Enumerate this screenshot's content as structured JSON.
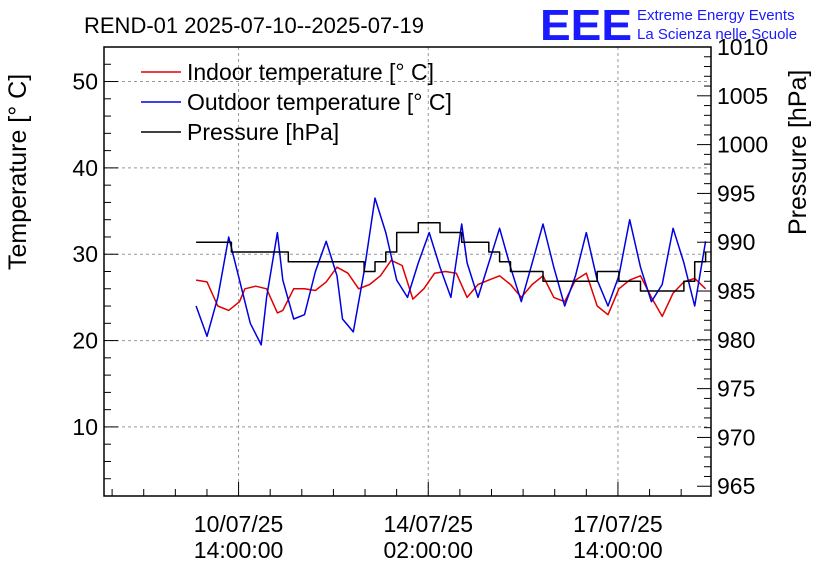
{
  "header": {
    "title": "REND-01 2025-07-10--2025-07-19",
    "logo": {
      "mark": "EEE",
      "line1": "Extreme Energy Events",
      "line2": "La Scienza nelle Scuole",
      "color": "#1a1aff"
    }
  },
  "chart_data": {
    "type": "line",
    "title": "REND-01 2025-07-10--2025-07-19",
    "xlabel": "",
    "ylabel": "Temperature [° C]",
    "y2label": "Pressure [hPa]",
    "xlim": [
      -1.9,
      9.3
    ],
    "ylim": [
      2,
      54
    ],
    "y2lim": [
      964,
      1010
    ],
    "x_unit": "days since 2025-07-10 00:00",
    "x_ticks": [
      {
        "x": 0.583,
        "label1": "10/07/25",
        "label2": "14:00:00"
      },
      {
        "x": 4.083,
        "label1": "14/07/25",
        "label2": "02:00:00"
      },
      {
        "x": 7.583,
        "label1": "17/07/25",
        "label2": "14:00:00"
      }
    ],
    "y_ticks": [
      10,
      20,
      30,
      40,
      50
    ],
    "y2_ticks": [
      965,
      970,
      975,
      980,
      985,
      990,
      995,
      1000,
      1005,
      1010
    ],
    "grid": true,
    "legend_position": "top-left",
    "colors": {
      "indoor": "#e00000",
      "outdoor": "#0000e0",
      "pressure": "#000000"
    },
    "series": [
      {
        "name": "Indoor temperature [° C]",
        "axis": "left",
        "color": "#e00000",
        "x": [
          -0.2,
          0.0,
          0.2,
          0.4,
          0.6,
          0.7,
          0.9,
          1.1,
          1.3,
          1.4,
          1.6,
          1.8,
          2.0,
          2.2,
          2.4,
          2.6,
          2.8,
          3.0,
          3.2,
          3.4,
          3.6,
          3.8,
          4.0,
          4.2,
          4.4,
          4.6,
          4.8,
          5.0,
          5.2,
          5.4,
          5.6,
          5.8,
          6.0,
          6.2,
          6.4,
          6.6,
          6.8,
          7.0,
          7.2,
          7.4,
          7.6,
          7.8,
          8.0,
          8.2,
          8.4,
          8.6,
          8.8,
          9.0,
          9.2
        ],
        "y": [
          27.0,
          26.8,
          24.0,
          23.5,
          24.5,
          26.0,
          26.3,
          26.0,
          23.2,
          23.5,
          26.0,
          26.0,
          25.8,
          26.8,
          28.5,
          27.8,
          26.0,
          26.5,
          27.5,
          29.3,
          28.7,
          24.8,
          26.0,
          27.8,
          28.0,
          27.8,
          25.0,
          26.5,
          27.0,
          27.5,
          26.5,
          25.0,
          26.5,
          27.5,
          25.0,
          24.5,
          27.0,
          27.8,
          24.0,
          23.0,
          26.0,
          27.0,
          27.5,
          25.0,
          22.8,
          25.5,
          26.8,
          27.2,
          26.0
        ]
      },
      {
        "name": "Outdoor temperature [° C]",
        "axis": "left",
        "color": "#0000e0",
        "x": [
          -0.2,
          0.0,
          0.2,
          0.4,
          0.6,
          0.8,
          1.0,
          1.1,
          1.3,
          1.4,
          1.6,
          1.8,
          2.0,
          2.2,
          2.4,
          2.5,
          2.7,
          2.9,
          3.1,
          3.3,
          3.5,
          3.7,
          3.9,
          4.1,
          4.3,
          4.5,
          4.7,
          4.8,
          5.0,
          5.2,
          5.4,
          5.6,
          5.8,
          6.0,
          6.2,
          6.4,
          6.6,
          6.8,
          7.0,
          7.2,
          7.4,
          7.6,
          7.8,
          8.0,
          8.2,
          8.4,
          8.6,
          8.8,
          9.0,
          9.2
        ],
        "y": [
          24.0,
          20.5,
          25.0,
          32.0,
          27.0,
          22.0,
          19.5,
          25.0,
          32.5,
          27.0,
          22.5,
          23.0,
          28.0,
          31.5,
          27.5,
          22.5,
          21.0,
          28.0,
          36.5,
          32.5,
          27.0,
          25.0,
          29.0,
          32.5,
          28.5,
          25.0,
          33.5,
          29.0,
          25.0,
          29.0,
          33.0,
          28.5,
          24.5,
          29.0,
          33.5,
          28.5,
          24.0,
          27.5,
          32.5,
          27.0,
          24.0,
          27.5,
          34.0,
          28.5,
          24.5,
          26.5,
          33.0,
          29.0,
          24.0,
          31.5
        ]
      },
      {
        "name": "Pressure [hPa]",
        "axis": "right",
        "color": "#000000",
        "x": [
          -0.2,
          0.0,
          0.15,
          0.3,
          0.45,
          0.6,
          0.8,
          1.0,
          1.2,
          1.5,
          1.7,
          1.9,
          2.1,
          2.3,
          2.5,
          2.7,
          2.9,
          3.1,
          3.3,
          3.5,
          3.7,
          3.9,
          4.1,
          4.3,
          4.5,
          4.7,
          4.8,
          5.0,
          5.2,
          5.4,
          5.6,
          5.8,
          6.0,
          6.2,
          6.4,
          6.6,
          6.8,
          7.0,
          7.2,
          7.4,
          7.6,
          7.8,
          8.0,
          8.2,
          8.4,
          8.6,
          8.8,
          9.0,
          9.2
        ],
        "y": [
          990,
          990,
          990,
          990,
          989,
          989,
          989,
          989,
          989,
          988,
          988,
          988,
          988,
          988,
          988,
          988,
          987,
          988,
          989,
          991,
          991,
          992,
          992,
          991,
          991,
          990,
          990,
          990,
          989,
          988,
          987,
          987,
          987,
          986,
          986,
          986,
          986,
          986,
          987,
          987,
          986,
          986,
          985,
          985,
          985,
          985,
          986,
          988,
          989
        ]
      }
    ]
  }
}
